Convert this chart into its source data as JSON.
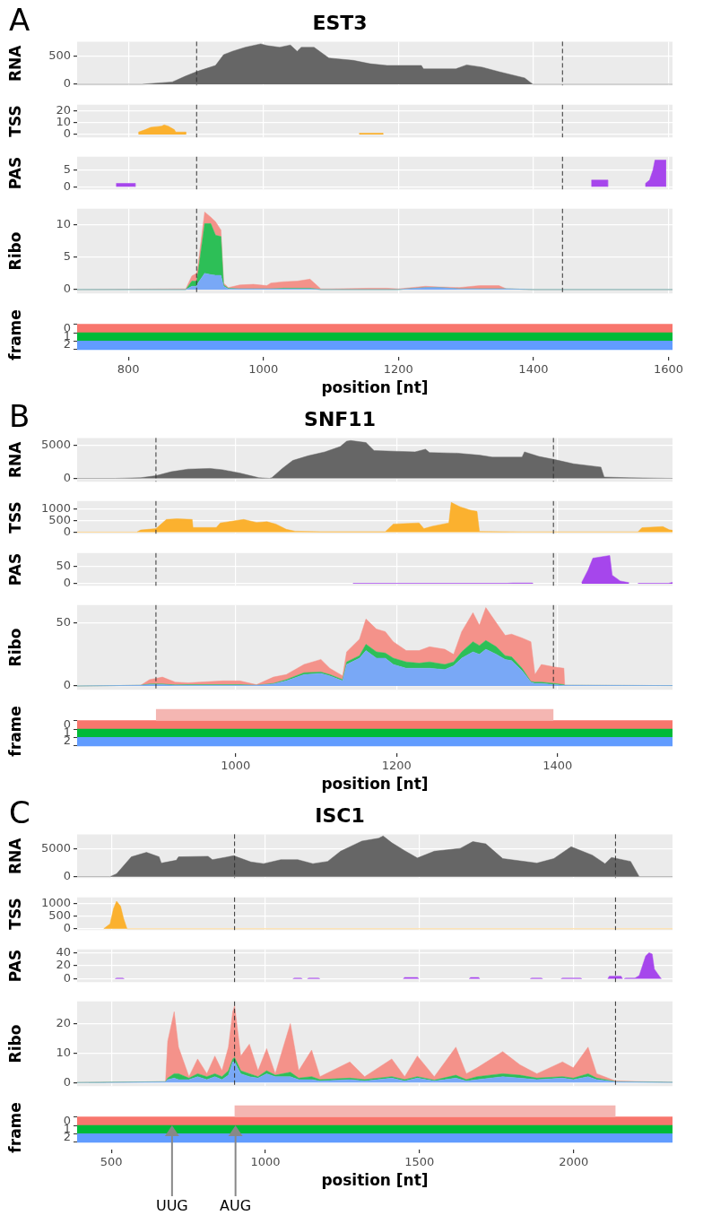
{
  "chart_data": [
    {
      "type": "area",
      "title": "EST3",
      "annotations": [
        "A"
      ],
      "ylabel": "RNA",
      "xlim": [
        724,
        1606
      ],
      "xticks": [
        800,
        1000,
        1200,
        1400,
        1600
      ],
      "ylim": [
        -20,
        750
      ],
      "yticks": [
        0,
        500
      ],
      "tick_labels": "y",
      "grid": true,
      "ref_lines": [
        {
          "axis": "x",
          "value": 901,
          "color": "#333333",
          "line_style": "dashed"
        },
        {
          "axis": "x",
          "value": 1443,
          "color": "#333333",
          "line_style": "dashed"
        }
      ],
      "series": [
        {
          "color": "#666666",
          "x": [
            724,
            801,
            820,
            865,
            884,
            903,
            929,
            941,
            954,
            973,
            996,
            1005,
            1024,
            1040,
            1050,
            1056,
            1075,
            1097,
            1133,
            1158,
            1183,
            1234,
            1237,
            1285,
            1301,
            1324,
            1349,
            1387,
            1399,
            1606
          ],
          "values": [
            0,
            0,
            0,
            40,
            140,
            230,
            330,
            520,
            580,
            650,
            710,
            680,
            650,
            690,
            580,
            650,
            650,
            460,
            420,
            360,
            330,
            330,
            270,
            270,
            340,
            300,
            220,
            110,
            0,
            0
          ]
        }
      ]
    },
    {
      "type": "area",
      "ylabel": "TSS",
      "xlim": [
        724,
        1606
      ],
      "xticks": [
        800,
        1000,
        1200,
        1400,
        1600
      ],
      "ylim": [
        -2.5,
        25
      ],
      "yticks": [
        0,
        10,
        20
      ],
      "tick_labels": "y",
      "grid": true,
      "ref_lines": [
        {
          "axis": "x",
          "value": 901,
          "color": "#333333",
          "line_style": "dashed"
        },
        {
          "axis": "x",
          "value": 1443,
          "color": "#333333",
          "line_style": "dashed"
        }
      ],
      "series": [
        {
          "color": "#fbb12f",
          "x": [
            815,
            815,
            825,
            833,
            849,
            853,
            859,
            868,
            870,
            885,
            885,
            1000,
            1142,
            1142,
            1177,
            1177
          ],
          "values": [
            0,
            2,
            4,
            6,
            7,
            8,
            7,
            4,
            2,
            2,
            0,
            null,
            0,
            1,
            1,
            0
          ]
        }
      ]
    },
    {
      "type": "area",
      "ylabel": "PAS",
      "xlim": [
        724,
        1606
      ],
      "xticks": [
        800,
        1000,
        1200,
        1400,
        1600
      ],
      "ylim": [
        -0.8,
        9
      ],
      "yticks": [
        0,
        5
      ],
      "tick_labels": "y",
      "grid": true,
      "ref_lines": [
        {
          "axis": "x",
          "value": 901,
          "color": "#333333",
          "line_style": "dashed"
        },
        {
          "axis": "x",
          "value": 1443,
          "color": "#333333",
          "line_style": "dashed"
        }
      ],
      "series": [
        {
          "color": "#a646ec",
          "x": [
            782,
            782,
            810,
            810,
            1000,
            1486,
            1486,
            1510,
            1510,
            1540,
            1566,
            1566,
            1572,
            1577,
            1580,
            1596,
            1596
          ],
          "values": [
            0,
            1,
            1,
            0,
            null,
            0,
            2,
            2,
            0,
            null,
            0,
            1,
            2,
            5,
            8,
            8,
            0
          ]
        }
      ]
    },
    {
      "type": "area",
      "stacked": true,
      "ylabel": "Ribo",
      "xlim": [
        724,
        1606
      ],
      "xticks": [
        800,
        1000,
        1200,
        1400,
        1600
      ],
      "ylim": [
        -0.6,
        12.5
      ],
      "yticks": [
        0,
        5,
        10
      ],
      "tick_labels": "y",
      "grid": true,
      "ref_lines": [
        {
          "axis": "x",
          "value": 901,
          "color": "#333333",
          "line_style": "dashed"
        },
        {
          "axis": "x",
          "value": 1443,
          "color": "#333333",
          "line_style": "dashed"
        }
      ],
      "series": [
        {
          "color": "#79a8f6",
          "x": [
            724,
            885,
            894,
            901,
            903,
            913,
            922,
            929,
            937,
            941,
            948,
            965,
            985,
            1005,
            1011,
            1030,
            1050,
            1069,
            1085,
            1100,
            1155,
            1183,
            1200,
            1240,
            1260,
            1290,
            1320,
            1349,
            1360,
            1400,
            1606
          ],
          "values": [
            0,
            0,
            0.5,
            0.5,
            1,
            2.5,
            2.3,
            2.2,
            2.2,
            0.5,
            0.1,
            0.1,
            0.1,
            0.1,
            0.1,
            0.1,
            0.1,
            0.1,
            0,
            0,
            0,
            0,
            0,
            0.3,
            0.3,
            0.1,
            0.1,
            0.1,
            0.1,
            0,
            0
          ]
        },
        {
          "color": "#2dbf57",
          "x": [
            724,
            885,
            894,
            901,
            903,
            913,
            922,
            929,
            937,
            941,
            948,
            965,
            985,
            1005,
            1011,
            1030,
            1050,
            1069,
            1085,
            1100,
            1155,
            1183,
            1200,
            1240,
            1260,
            1290,
            1320,
            1349,
            1360,
            1400,
            1606
          ],
          "values": [
            0,
            0,
            0.8,
            0.8,
            1.5,
            7.7,
            7.9,
            6.2,
            6.0,
            0.2,
            0.1,
            0,
            0,
            0,
            0,
            0.1,
            0.1,
            0.1,
            0,
            0,
            0,
            0,
            0,
            0,
            0,
            0,
            0,
            0,
            0,
            0,
            0
          ]
        },
        {
          "color": "#f4928a",
          "x": [
            724,
            885,
            894,
            901,
            903,
            913,
            922,
            929,
            937,
            941,
            948,
            965,
            985,
            1005,
            1011,
            1030,
            1050,
            1069,
            1085,
            1100,
            1155,
            1183,
            1200,
            1240,
            1260,
            1290,
            1320,
            1349,
            1360,
            1400,
            1606
          ],
          "values": [
            0,
            0.1,
            0.8,
            1.2,
            1.1,
            1.8,
            1.0,
            2.1,
            1.0,
            0.3,
            0.1,
            0.6,
            0.7,
            0.5,
            0.9,
            1.0,
            1.1,
            1.4,
            0.1,
            0.1,
            0.2,
            0.2,
            0.1,
            0.2,
            0.1,
            0.2,
            0.5,
            0.5,
            0,
            0,
            0
          ]
        }
      ]
    },
    {
      "type": "bar",
      "orientation": "horizontal",
      "ylabel": "frame",
      "xlabel": "position [nt]",
      "xlim": [
        724,
        1606
      ],
      "xticks": [
        800,
        1000,
        1200,
        1400,
        1600
      ],
      "categories": [
        "0",
        "1",
        "2"
      ],
      "base": [
        724,
        724,
        724
      ],
      "values": [
        882,
        882,
        882
      ],
      "colors": [
        "#f8766d",
        "#00ba38",
        "#619cff"
      ]
    },
    {
      "type": "area",
      "title": "SNF11",
      "annotations": [
        "B"
      ],
      "ylabel": "RNA",
      "xlim": [
        803,
        1543
      ],
      "xticks": [
        1000,
        1200,
        1400
      ],
      "ylim": [
        -500,
        6100
      ],
      "yticks": [
        0,
        5000
      ],
      "tick_labels": "y",
      "grid": true,
      "ref_lines": [
        {
          "axis": "x",
          "value": 901,
          "color": "#333333",
          "line_style": "dashed"
        },
        {
          "axis": "x",
          "value": 1395,
          "color": "#333333",
          "line_style": "dashed"
        }
      ],
      "series": [
        {
          "color": "#666666",
          "x": [
            803,
            850,
            882,
            901,
            920,
            941,
            968,
            984,
            1005,
            1029,
            1042,
            1045,
            1058,
            1071,
            1090,
            1111,
            1130,
            1138,
            1143,
            1162,
            1172,
            1196,
            1223,
            1236,
            1241,
            1276,
            1303,
            1319,
            1356,
            1359,
            1377,
            1398,
            1420,
            1454,
            1458,
            1489,
            1543
          ],
          "values": [
            0,
            0,
            100,
            400,
            1000,
            1400,
            1500,
            1300,
            800,
            100,
            0,
            100,
            1500,
            2700,
            3400,
            4000,
            4800,
            5600,
            5700,
            5400,
            4200,
            4100,
            4000,
            4400,
            3900,
            3800,
            3500,
            3200,
            3200,
            4000,
            3300,
            2800,
            2200,
            1700,
            200,
            100,
            0
          ]
        }
      ]
    },
    {
      "type": "area",
      "ylabel": "TSS",
      "xlim": [
        803,
        1543
      ],
      "xticks": [
        1000,
        1200,
        1400
      ],
      "ylim": [
        -70,
        1350
      ],
      "yticks": [
        0,
        500,
        1000
      ],
      "tick_labels": "y",
      "grid": true,
      "ref_lines": [
        {
          "axis": "x",
          "value": 901,
          "color": "#333333",
          "line_style": "dashed"
        },
        {
          "axis": "x",
          "value": 1395,
          "color": "#333333",
          "line_style": "dashed"
        }
      ],
      "series": [
        {
          "color": "#fbb12f",
          "x": [
            803,
            877,
            882,
            901,
            914,
            927,
            946,
            947,
            976,
            981,
            1010,
            1026,
            1039,
            1050,
            1063,
            1074,
            1106,
            1186,
            1196,
            1228,
            1234,
            1244,
            1265,
            1268,
            1279,
            1292,
            1300,
            1303,
            1356,
            1500,
            1505,
            1531,
            1539,
            1543
          ],
          "values": [
            0,
            0,
            90,
            150,
            550,
            580,
            550,
            200,
            200,
            400,
            550,
            420,
            450,
            350,
            120,
            40,
            20,
            20,
            350,
            400,
            150,
            250,
            400,
            1290,
            1100,
            950,
            900,
            30,
            10,
            10,
            190,
            240,
            100,
            80
          ]
        }
      ]
    },
    {
      "type": "area",
      "ylabel": "PAS",
      "xlim": [
        803,
        1543
      ],
      "xticks": [
        1000,
        1200,
        1400
      ],
      "ylim": [
        -6,
        90
      ],
      "yticks": [
        0,
        50
      ],
      "tick_labels": "y",
      "grid": true,
      "ref_lines": [
        {
          "axis": "x",
          "value": 901,
          "color": "#333333",
          "line_style": "dashed"
        },
        {
          "axis": "x",
          "value": 1395,
          "color": "#333333",
          "line_style": "dashed"
        }
      ],
      "series": [
        {
          "color": "#a646ec",
          "x": [
            1146,
            1146,
            1337,
            1345,
            1369,
            1369,
            1400,
            1430,
            1438,
            1444,
            1465,
            1468,
            1478,
            1489,
            1495,
            1500,
            1538,
            1543
          ],
          "values": [
            0,
            1,
            1,
            2,
            2,
            0,
            null,
            3,
            40,
            75,
            83,
            25,
            8,
            3,
            null,
            1,
            1,
            4
          ]
        }
      ]
    },
    {
      "type": "area",
      "stacked": true,
      "ylabel": "Ribo",
      "xlim": [
        803,
        1543
      ],
      "xticks": [
        1000,
        1200,
        1400
      ],
      "ylim": [
        -3,
        64
      ],
      "yticks": [
        0,
        50
      ],
      "tick_labels": "y",
      "grid": true,
      "ref_lines": [
        {
          "axis": "x",
          "value": 901,
          "color": "#333333",
          "line_style": "dashed"
        },
        {
          "axis": "x",
          "value": 1395,
          "color": "#333333",
          "line_style": "dashed"
        }
      ],
      "series": [
        {
          "color": "#79a8f6",
          "x": [
            803,
            882,
            893,
            901,
            909,
            925,
            941,
            984,
            1005,
            1026,
            1047,
            1063,
            1085,
            1106,
            1117,
            1133,
            1138,
            1154,
            1162,
            1175,
            1186,
            1196,
            1212,
            1228,
            1241,
            1260,
            1271,
            1281,
            1295,
            1303,
            1311,
            1324,
            1335,
            1343,
            1356,
            1367,
            1372,
            1380,
            1396,
            1408,
            1409,
            1543
          ],
          "values": [
            0,
            0.5,
            1,
            1,
            1,
            0.5,
            0.5,
            0.5,
            0.5,
            0.5,
            1.5,
            4,
            9,
            10,
            8,
            4,
            17,
            22,
            28,
            22,
            22,
            17,
            14,
            14,
            14,
            13,
            16,
            22,
            27,
            25,
            29,
            25,
            21,
            20,
            12,
            3,
            2,
            2,
            1,
            0.5,
            0.5,
            0.3
          ]
        },
        {
          "color": "#2dbf57",
          "x": [
            803,
            882,
            893,
            901,
            909,
            925,
            941,
            984,
            1005,
            1026,
            1047,
            1063,
            1085,
            1106,
            1117,
            1133,
            1138,
            1154,
            1162,
            1175,
            1186,
            1196,
            1212,
            1228,
            1241,
            1260,
            1271,
            1281,
            1295,
            1303,
            1311,
            1324,
            1335,
            1343,
            1356,
            1367,
            1372,
            1380,
            1396,
            1408,
            1409,
            1543
          ],
          "values": [
            0,
            0,
            0.5,
            0.6,
            0.5,
            0.3,
            0.5,
            0.5,
            0.5,
            0,
            0.5,
            1,
            1.5,
            1,
            1,
            1,
            2,
            2,
            5,
            5,
            4,
            5,
            5,
            4,
            5,
            4,
            3,
            5,
            8,
            7,
            7,
            6,
            3,
            3,
            2,
            0.5,
            1,
            1,
            1,
            0.5,
            0,
            0
          ]
        },
        {
          "color": "#f4928a",
          "x": [
            803,
            882,
            893,
            901,
            909,
            925,
            941,
            984,
            1005,
            1026,
            1047,
            1063,
            1085,
            1106,
            1117,
            1133,
            1138,
            1154,
            1162,
            1175,
            1186,
            1196,
            1212,
            1228,
            1241,
            1260,
            1271,
            1281,
            1295,
            1303,
            1311,
            1324,
            1335,
            1343,
            1356,
            1367,
            1372,
            1380,
            1396,
            1408,
            1409,
            1543
          ],
          "values": [
            0,
            0,
            3.5,
            4.4,
            5.5,
            2.2,
            1.5,
            3,
            3,
            0.5,
            5,
            4,
            6.5,
            10,
            5,
            3,
            8,
            13,
            20,
            18,
            17,
            13,
            9,
            10,
            12,
            12,
            6,
            16,
            23,
            16,
            26,
            19,
            16,
            18,
            24,
            31.5,
            6,
            14,
            13,
            13,
            0,
            0
          ]
        }
      ]
    },
    {
      "type": "bar",
      "orientation": "horizontal",
      "ylabel": "frame",
      "xlabel": "position [nt]",
      "xlim": [
        803,
        1543
      ],
      "xticks": [
        1000,
        1200,
        1400
      ],
      "categories": [
        "0",
        "1",
        "2"
      ],
      "base": [
        803,
        803,
        803
      ],
      "values": [
        740,
        740,
        740
      ],
      "colors": [
        "#f8766d",
        "#00ba38",
        "#619cff"
      ],
      "bands": [
        {
          "axis": "x",
          "from": 901,
          "to": 1395,
          "color": "#f4b6b2"
        }
      ]
    },
    {
      "type": "area",
      "title": "ISC1",
      "annotations": [
        "C"
      ],
      "ylabel": "RNA",
      "xlim": [
        389,
        2321
      ],
      "xticks": [
        500,
        1000,
        1500,
        2000
      ],
      "ylim": [
        -250,
        7500
      ],
      "yticks": [
        0,
        5000
      ],
      "tick_labels": "y",
      "grid": true,
      "ref_lines": [
        {
          "axis": "x",
          "value": 900,
          "color": "#333333",
          "line_style": "dashed"
        },
        {
          "axis": "x",
          "value": 2136,
          "color": "#333333",
          "line_style": "dashed"
        }
      ],
      "series": [
        {
          "color": "#666666",
          "x": [
            389,
            496,
            517,
            565,
            614,
            655,
            662,
            711,
            718,
            814,
            828,
            897,
            953,
            994,
            1050,
            1105,
            1154,
            1202,
            1244,
            1313,
            1368,
            1382,
            1410,
            1452,
            1493,
            1548,
            1632,
            1673,
            1715,
            1770,
            1881,
            1936,
            1992,
            2061,
            2102,
            2123,
            2185,
            2213,
            2321
          ],
          "values": [
            0,
            0,
            500,
            3500,
            4300,
            3500,
            2400,
            2900,
            3500,
            3600,
            3000,
            3700,
            2600,
            2300,
            3000,
            3000,
            2300,
            2700,
            4500,
            6300,
            6800,
            7200,
            6000,
            4600,
            3300,
            4500,
            5000,
            6200,
            5800,
            3200,
            2400,
            3200,
            5300,
            3800,
            2300,
            3400,
            2700,
            0,
            0
          ]
        }
      ]
    },
    {
      "type": "area",
      "ylabel": "TSS",
      "xlim": [
        389,
        2321
      ],
      "xticks": [
        500,
        1000,
        1500,
        2000
      ],
      "ylim": [
        -50,
        1250
      ],
      "yticks": [
        0,
        500,
        1000
      ],
      "tick_labels": "y",
      "grid": true,
      "ref_lines": [
        {
          "axis": "x",
          "value": 900,
          "color": "#333333",
          "line_style": "dashed"
        },
        {
          "axis": "x",
          "value": 2136,
          "color": "#333333",
          "line_style": "dashed"
        }
      ],
      "series": [
        {
          "color": "#fbb12f",
          "x": [
            475,
            496,
            507,
            517,
            530,
            540,
            551,
            2321
          ],
          "values": [
            0,
            200,
            800,
            1100,
            900,
            400,
            0,
            0
          ]
        }
      ]
    },
    {
      "type": "area",
      "ylabel": "PAS",
      "xlim": [
        389,
        2321
      ],
      "xticks": [
        500,
        1000,
        1500,
        2000
      ],
      "ylim": [
        -5,
        45
      ],
      "yticks": [
        0,
        20,
        40
      ],
      "tick_labels": "y",
      "grid": true,
      "ref_lines": [
        {
          "axis": "x",
          "value": 900,
          "color": "#333333",
          "line_style": "dashed"
        },
        {
          "axis": "x",
          "value": 2136,
          "color": "#333333",
          "line_style": "dashed"
        }
      ],
      "series": [
        {
          "color": "#a646ec",
          "x": [
            512,
            517,
            537,
            542,
            600,
            1089,
            1094,
            1115,
            1120,
            1130,
            1136,
            1141,
            1172,
            1177,
            1300,
            1447,
            1452,
            1493,
            1498,
            1600,
            1661,
            1666,
            1691,
            1696,
            1800,
            1859,
            1864,
            1895,
            1900,
            1930,
            1959,
            1964,
            2022,
            2027,
            2060,
            2111,
            2116,
            2154,
            2159,
            2160,
            2164,
            2169,
            2199,
            2213,
            2234,
            2245,
            2255,
            2262,
            2280,
            2285
          ],
          "values": [
            0,
            1,
            1,
            0,
            null,
            0,
            1,
            1,
            0,
            null,
            0,
            1,
            1,
            0,
            null,
            0,
            2,
            2,
            0,
            null,
            0,
            2,
            2,
            0,
            null,
            0,
            1,
            1,
            0,
            null,
            0,
            1,
            1,
            0,
            null,
            0,
            4,
            4,
            0,
            null,
            0,
            1,
            1,
            5,
            35,
            40,
            38,
            15,
            3,
            0
          ]
        }
      ]
    },
    {
      "type": "area",
      "stacked": true,
      "ylabel": "Ribo",
      "xlim": [
        389,
        2321
      ],
      "xticks": [
        500,
        1000,
        1500,
        2000
      ],
      "ylim": [
        -1.2,
        27.5
      ],
      "yticks": [
        0,
        10,
        20
      ],
      "tick_labels": "y",
      "grid": true,
      "ref_lines": [
        {
          "axis": "x",
          "value": 900,
          "color": "#333333",
          "line_style": "dashed"
        },
        {
          "axis": "x",
          "value": 2136,
          "color": "#333333",
          "line_style": "dashed"
        }
      ],
      "series": [
        {
          "color": "#79a8f6",
          "x": [
            389,
            676,
            683,
            704,
            718,
            752,
            780,
            810,
            836,
            859,
            880,
            894,
            900,
            920,
            948,
            976,
            1004,
            1032,
            1081,
            1108,
            1150,
            1177,
            1274,
            1322,
            1410,
            1452,
            1493,
            1548,
            1618,
            1652,
            1687,
            1770,
            1826,
            1881,
            1964,
            1999,
            2047,
            2075,
            2137,
            2321
          ],
          "values": [
            0,
            0.2,
            1,
            1.5,
            1,
            1,
            2,
            1,
            2,
            1,
            2.5,
            7,
            7,
            3,
            2,
            1.5,
            3,
            2,
            2,
            1,
            1,
            0.5,
            1,
            0.5,
            1.5,
            0.5,
            1.5,
            0.5,
            1.5,
            0.5,
            1,
            2,
            1.5,
            1,
            1.5,
            1,
            2,
            1,
            0.2,
            0.1
          ]
        },
        {
          "color": "#2dbf57",
          "x": [
            389,
            676,
            683,
            704,
            718,
            752,
            780,
            810,
            836,
            859,
            880,
            894,
            900,
            920,
            948,
            976,
            1004,
            1032,
            1081,
            1108,
            1150,
            1177,
            1274,
            1322,
            1410,
            1452,
            1493,
            1548,
            1618,
            1652,
            1687,
            1770,
            1826,
            1881,
            1964,
            1999,
            2047,
            2075,
            2137,
            2321
          ],
          "values": [
            0,
            0.1,
            0.5,
            1.5,
            2,
            0.5,
            1,
            1,
            1,
            1,
            1.5,
            1,
            1.5,
            1,
            1,
            0.5,
            1,
            0.5,
            1.5,
            0.5,
            1,
            0.5,
            0.5,
            0.5,
            0.5,
            0.5,
            0.5,
            0.3,
            1,
            0.5,
            1,
            1,
            1,
            0.5,
            0.5,
            0.5,
            1,
            0.5,
            0.1,
            0
          ]
        },
        {
          "color": "#f4928a",
          "x": [
            389,
            676,
            683,
            704,
            718,
            752,
            780,
            810,
            836,
            859,
            880,
            894,
            900,
            920,
            948,
            976,
            1004,
            1032,
            1081,
            1108,
            1150,
            1177,
            1274,
            1322,
            1410,
            1452,
            1493,
            1548,
            1618,
            1652,
            1687,
            1770,
            1826,
            1881,
            1964,
            1999,
            2047,
            2075,
            2137,
            2321
          ],
          "values": [
            0,
            0,
            12.5,
            21,
            9,
            0.5,
            5,
            1,
            6,
            2,
            8,
            16,
            17.5,
            5,
            10,
            2,
            7.5,
            0.5,
            16.5,
            2.5,
            9,
            1,
            5.5,
            1,
            6,
            1,
            7,
            1.2,
            9.5,
            2,
            3,
            7.5,
            3.5,
            1.5,
            5,
            3.5,
            9,
            1.5,
            0.2,
            0
          ]
        }
      ]
    },
    {
      "type": "bar",
      "orientation": "horizontal",
      "ylabel": "frame",
      "xlabel": "position [nt]",
      "xlim": [
        389,
        2321
      ],
      "xticks": [
        500,
        1000,
        1500,
        2000
      ],
      "categories": [
        "0",
        "1",
        "2"
      ],
      "base": [
        389,
        389,
        389
      ],
      "values": [
        1932,
        1932,
        1932
      ],
      "colors": [
        "#f8766d",
        "#00ba38",
        "#619cff"
      ],
      "bands": [
        {
          "axis": "x",
          "from": 900,
          "to": 2136,
          "color": "#f4b6b2"
        }
      ],
      "annotations": [
        {
          "text": "UUG",
          "x": 697,
          "y": "1"
        },
        {
          "text": "AUG",
          "x": 903,
          "y": "1"
        }
      ]
    }
  ]
}
